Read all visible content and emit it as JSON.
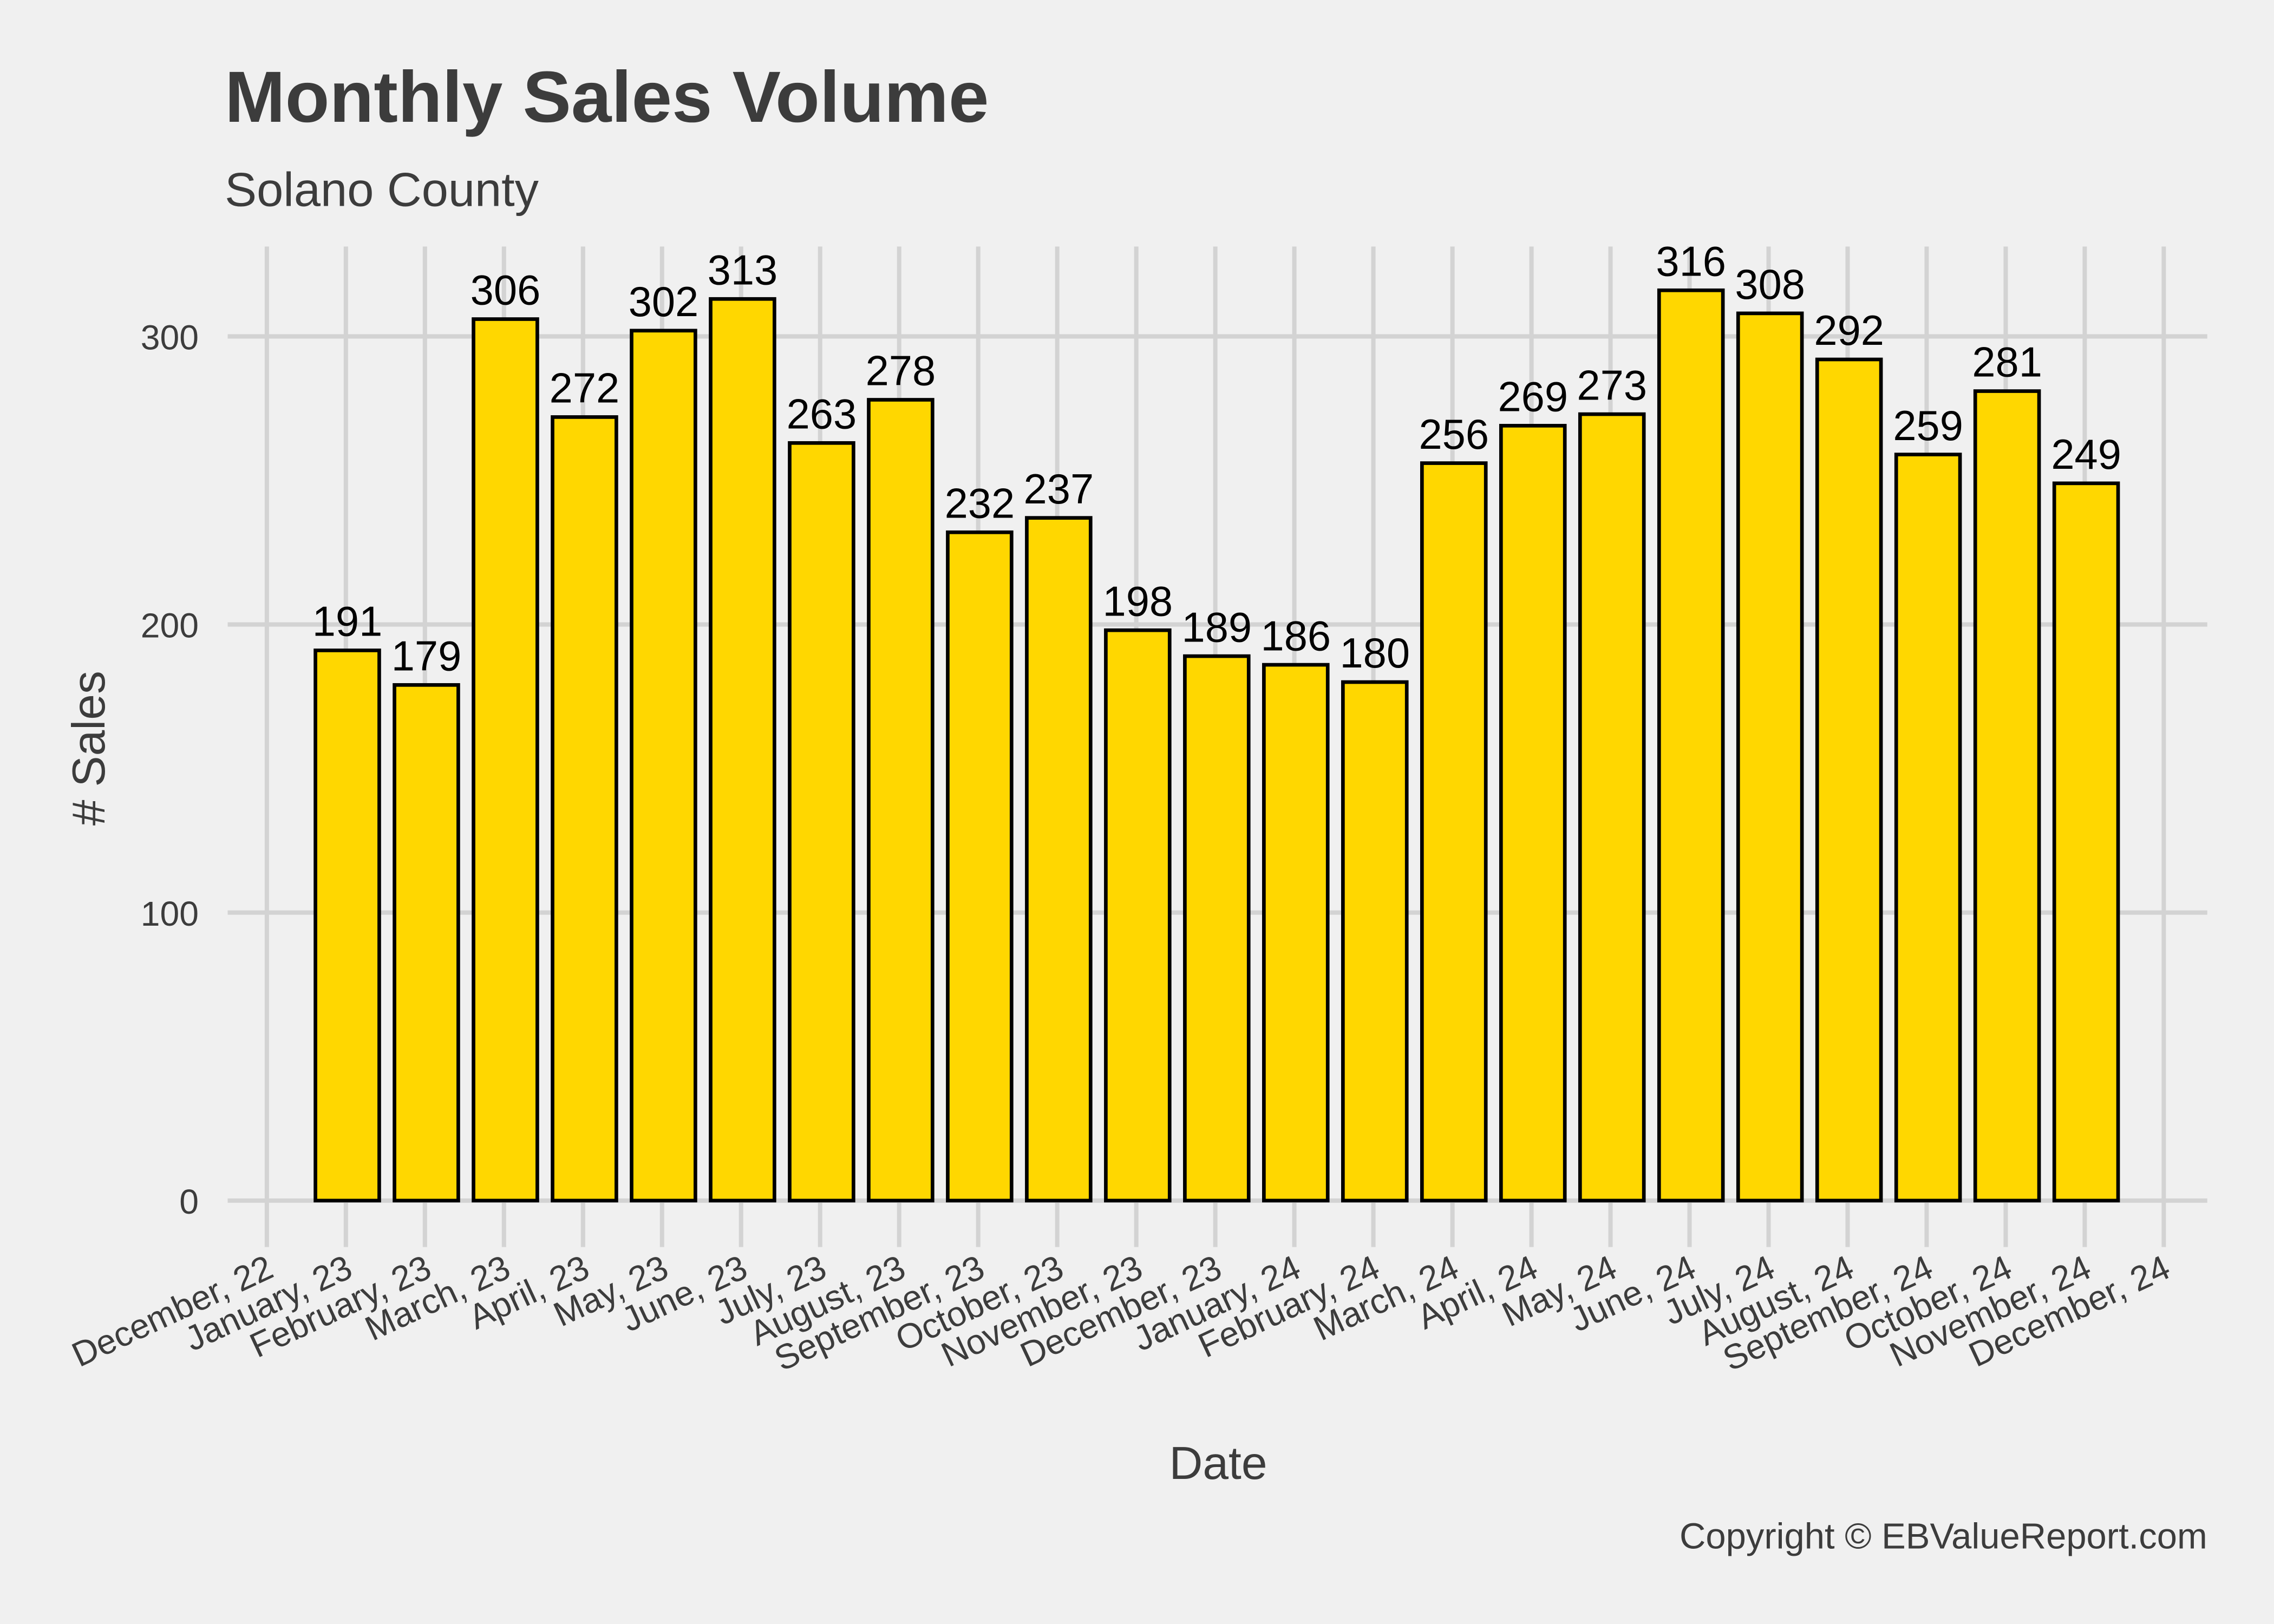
{
  "chart_data": {
    "type": "bar",
    "title": "Monthly Sales Volume",
    "subtitle": "Solano County",
    "xlabel": "Date",
    "ylabel": "# Sales",
    "caption": "Copyright  © EBValueReport.com",
    "ylim": [
      0,
      320
    ],
    "yticks": [
      0,
      100,
      200,
      300
    ],
    "grid": true,
    "legend": "none",
    "bar_fill": "#FFD700",
    "bar_outline": "#000000",
    "x_tick_labels": [
      "December, 22",
      "January, 23",
      "February, 23",
      "March, 23",
      "April, 23",
      "May, 23",
      "June, 23",
      "July, 23",
      "August, 23",
      "September, 23",
      "October, 23",
      "November, 23",
      "December, 23",
      "January, 24",
      "February, 24",
      "March, 24",
      "April, 24",
      "May, 24",
      "June, 24",
      "July, 24",
      "August, 24",
      "September, 24",
      "October, 24",
      "November, 24",
      "December, 24"
    ],
    "categories": [
      "Jan 2023",
      "Feb 2023",
      "Mar 2023",
      "Apr 2023",
      "May 2023",
      "Jun 2023",
      "Jul 2023",
      "Aug 2023",
      "Sep 2023",
      "Oct 2023",
      "Nov 2023",
      "Dec 2023",
      "Jan 2024",
      "Feb 2024",
      "Mar 2024",
      "Apr 2024",
      "May 2024",
      "Jun 2024",
      "Jul 2024",
      "Aug 2024",
      "Sep 2024",
      "Oct 2024",
      "Nov 2024",
      "Dec 2024"
    ],
    "values": [
      191,
      179,
      306,
      272,
      302,
      313,
      263,
      278,
      232,
      237,
      198,
      189,
      186,
      180,
      256,
      269,
      273,
      316,
      308,
      292,
      259,
      281,
      249,
      null
    ]
  }
}
